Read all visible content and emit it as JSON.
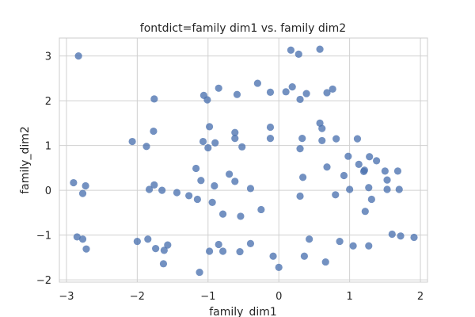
{
  "chart_data": {
    "type": "scatter",
    "title": "fontdict=family dim1 vs. family dim2",
    "xlabel": "family_dim1",
    "ylabel": "family_dim2",
    "xlim": [
      -3.1,
      2.1
    ],
    "ylim": [
      -2.05,
      3.4
    ],
    "xticks": [
      -3,
      -2,
      -1,
      0,
      1,
      2
    ],
    "yticks": [
      -2,
      -1,
      0,
      1,
      2,
      3
    ],
    "xtick_labels": [
      "−3",
      "−2",
      "−1",
      "0",
      "1",
      "2"
    ],
    "ytick_labels": [
      "−2",
      "−1",
      "0",
      "1",
      "2",
      "3"
    ],
    "grid": true,
    "color": "#4c72b0",
    "series": [
      {
        "points": [
          [
            -2.83,
            3.0
          ],
          [
            0.17,
            3.13
          ],
          [
            0.28,
            3.04
          ],
          [
            0.58,
            3.15
          ],
          [
            -0.3,
            2.39
          ],
          [
            -0.85,
            2.28
          ],
          [
            0.1,
            2.2
          ],
          [
            0.19,
            2.31
          ],
          [
            0.39,
            2.16
          ],
          [
            0.76,
            2.26
          ],
          [
            0.68,
            2.18
          ],
          [
            -1.76,
            2.04
          ],
          [
            -1.06,
            2.12
          ],
          [
            -1.01,
            2.02
          ],
          [
            -0.59,
            2.14
          ],
          [
            -0.12,
            2.19
          ],
          [
            0.3,
            2.03
          ],
          [
            -0.98,
            1.42
          ],
          [
            -0.12,
            1.41
          ],
          [
            0.58,
            1.5
          ],
          [
            1.11,
            1.15
          ],
          [
            -1.77,
            1.32
          ],
          [
            -0.62,
            1.29
          ],
          [
            0.61,
            1.38
          ],
          [
            -2.07,
            1.09
          ],
          [
            -1.07,
            1.09
          ],
          [
            -0.9,
            1.06
          ],
          [
            -0.62,
            1.16
          ],
          [
            -0.12,
            1.16
          ],
          [
            0.33,
            1.16
          ],
          [
            0.61,
            1.11
          ],
          [
            0.81,
            1.15
          ],
          [
            -1.87,
            0.98
          ],
          [
            -1.0,
            0.95
          ],
          [
            -0.52,
            0.97
          ],
          [
            0.3,
            0.93
          ],
          [
            0.98,
            0.76
          ],
          [
            1.13,
            0.58
          ],
          [
            1.28,
            0.75
          ],
          [
            1.38,
            0.66
          ],
          [
            0.68,
            0.52
          ],
          [
            -1.17,
            0.49
          ],
          [
            1.21,
            0.45
          ],
          [
            1.2,
            0.42
          ],
          [
            1.5,
            0.43
          ],
          [
            1.68,
            0.43
          ],
          [
            -2.9,
            0.17
          ],
          [
            -2.73,
            0.1
          ],
          [
            -2.77,
            -0.07
          ],
          [
            -1.76,
            0.12
          ],
          [
            -1.83,
            0.02
          ],
          [
            -1.65,
            0.0
          ],
          [
            -1.44,
            -0.05
          ],
          [
            -1.27,
            -0.12
          ],
          [
            -1.15,
            -0.2
          ],
          [
            -1.1,
            0.22
          ],
          [
            -0.91,
            0.1
          ],
          [
            -0.7,
            0.36
          ],
          [
            -0.62,
            0.2
          ],
          [
            -0.4,
            0.04
          ],
          [
            0.34,
            0.29
          ],
          [
            0.92,
            0.33
          ],
          [
            1.0,
            0.02
          ],
          [
            1.27,
            0.06
          ],
          [
            1.53,
            0.23
          ],
          [
            1.53,
            0.02
          ],
          [
            1.7,
            0.02
          ],
          [
            0.3,
            -0.13
          ],
          [
            0.8,
            -0.1
          ],
          [
            1.31,
            -0.2
          ],
          [
            -0.94,
            -0.27
          ],
          [
            -0.79,
            -0.53
          ],
          [
            -0.54,
            -0.58
          ],
          [
            -0.25,
            -0.43
          ],
          [
            1.22,
            -0.47
          ],
          [
            -2.85,
            -1.04
          ],
          [
            -2.77,
            -1.09
          ],
          [
            -2.72,
            -1.31
          ],
          [
            -2.0,
            -1.14
          ],
          [
            -1.85,
            -1.09
          ],
          [
            -1.74,
            -1.3
          ],
          [
            -1.62,
            -1.34
          ],
          [
            -1.57,
            -1.22
          ],
          [
            -1.63,
            -1.64
          ],
          [
            -0.85,
            -1.21
          ],
          [
            -0.98,
            -1.36
          ],
          [
            -0.79,
            -1.36
          ],
          [
            -0.55,
            -1.37
          ],
          [
            -0.4,
            -1.19
          ],
          [
            -0.08,
            -1.47
          ],
          [
            0.43,
            -1.09
          ],
          [
            0.86,
            -1.14
          ],
          [
            1.05,
            -1.24
          ],
          [
            1.27,
            -1.24
          ],
          [
            1.6,
            -0.98
          ],
          [
            1.72,
            -1.02
          ],
          [
            1.91,
            -1.05
          ],
          [
            0.36,
            -1.47
          ],
          [
            0.66,
            -1.6
          ],
          [
            -0.0,
            -1.72
          ],
          [
            -1.12,
            -1.83
          ]
        ]
      }
    ]
  }
}
